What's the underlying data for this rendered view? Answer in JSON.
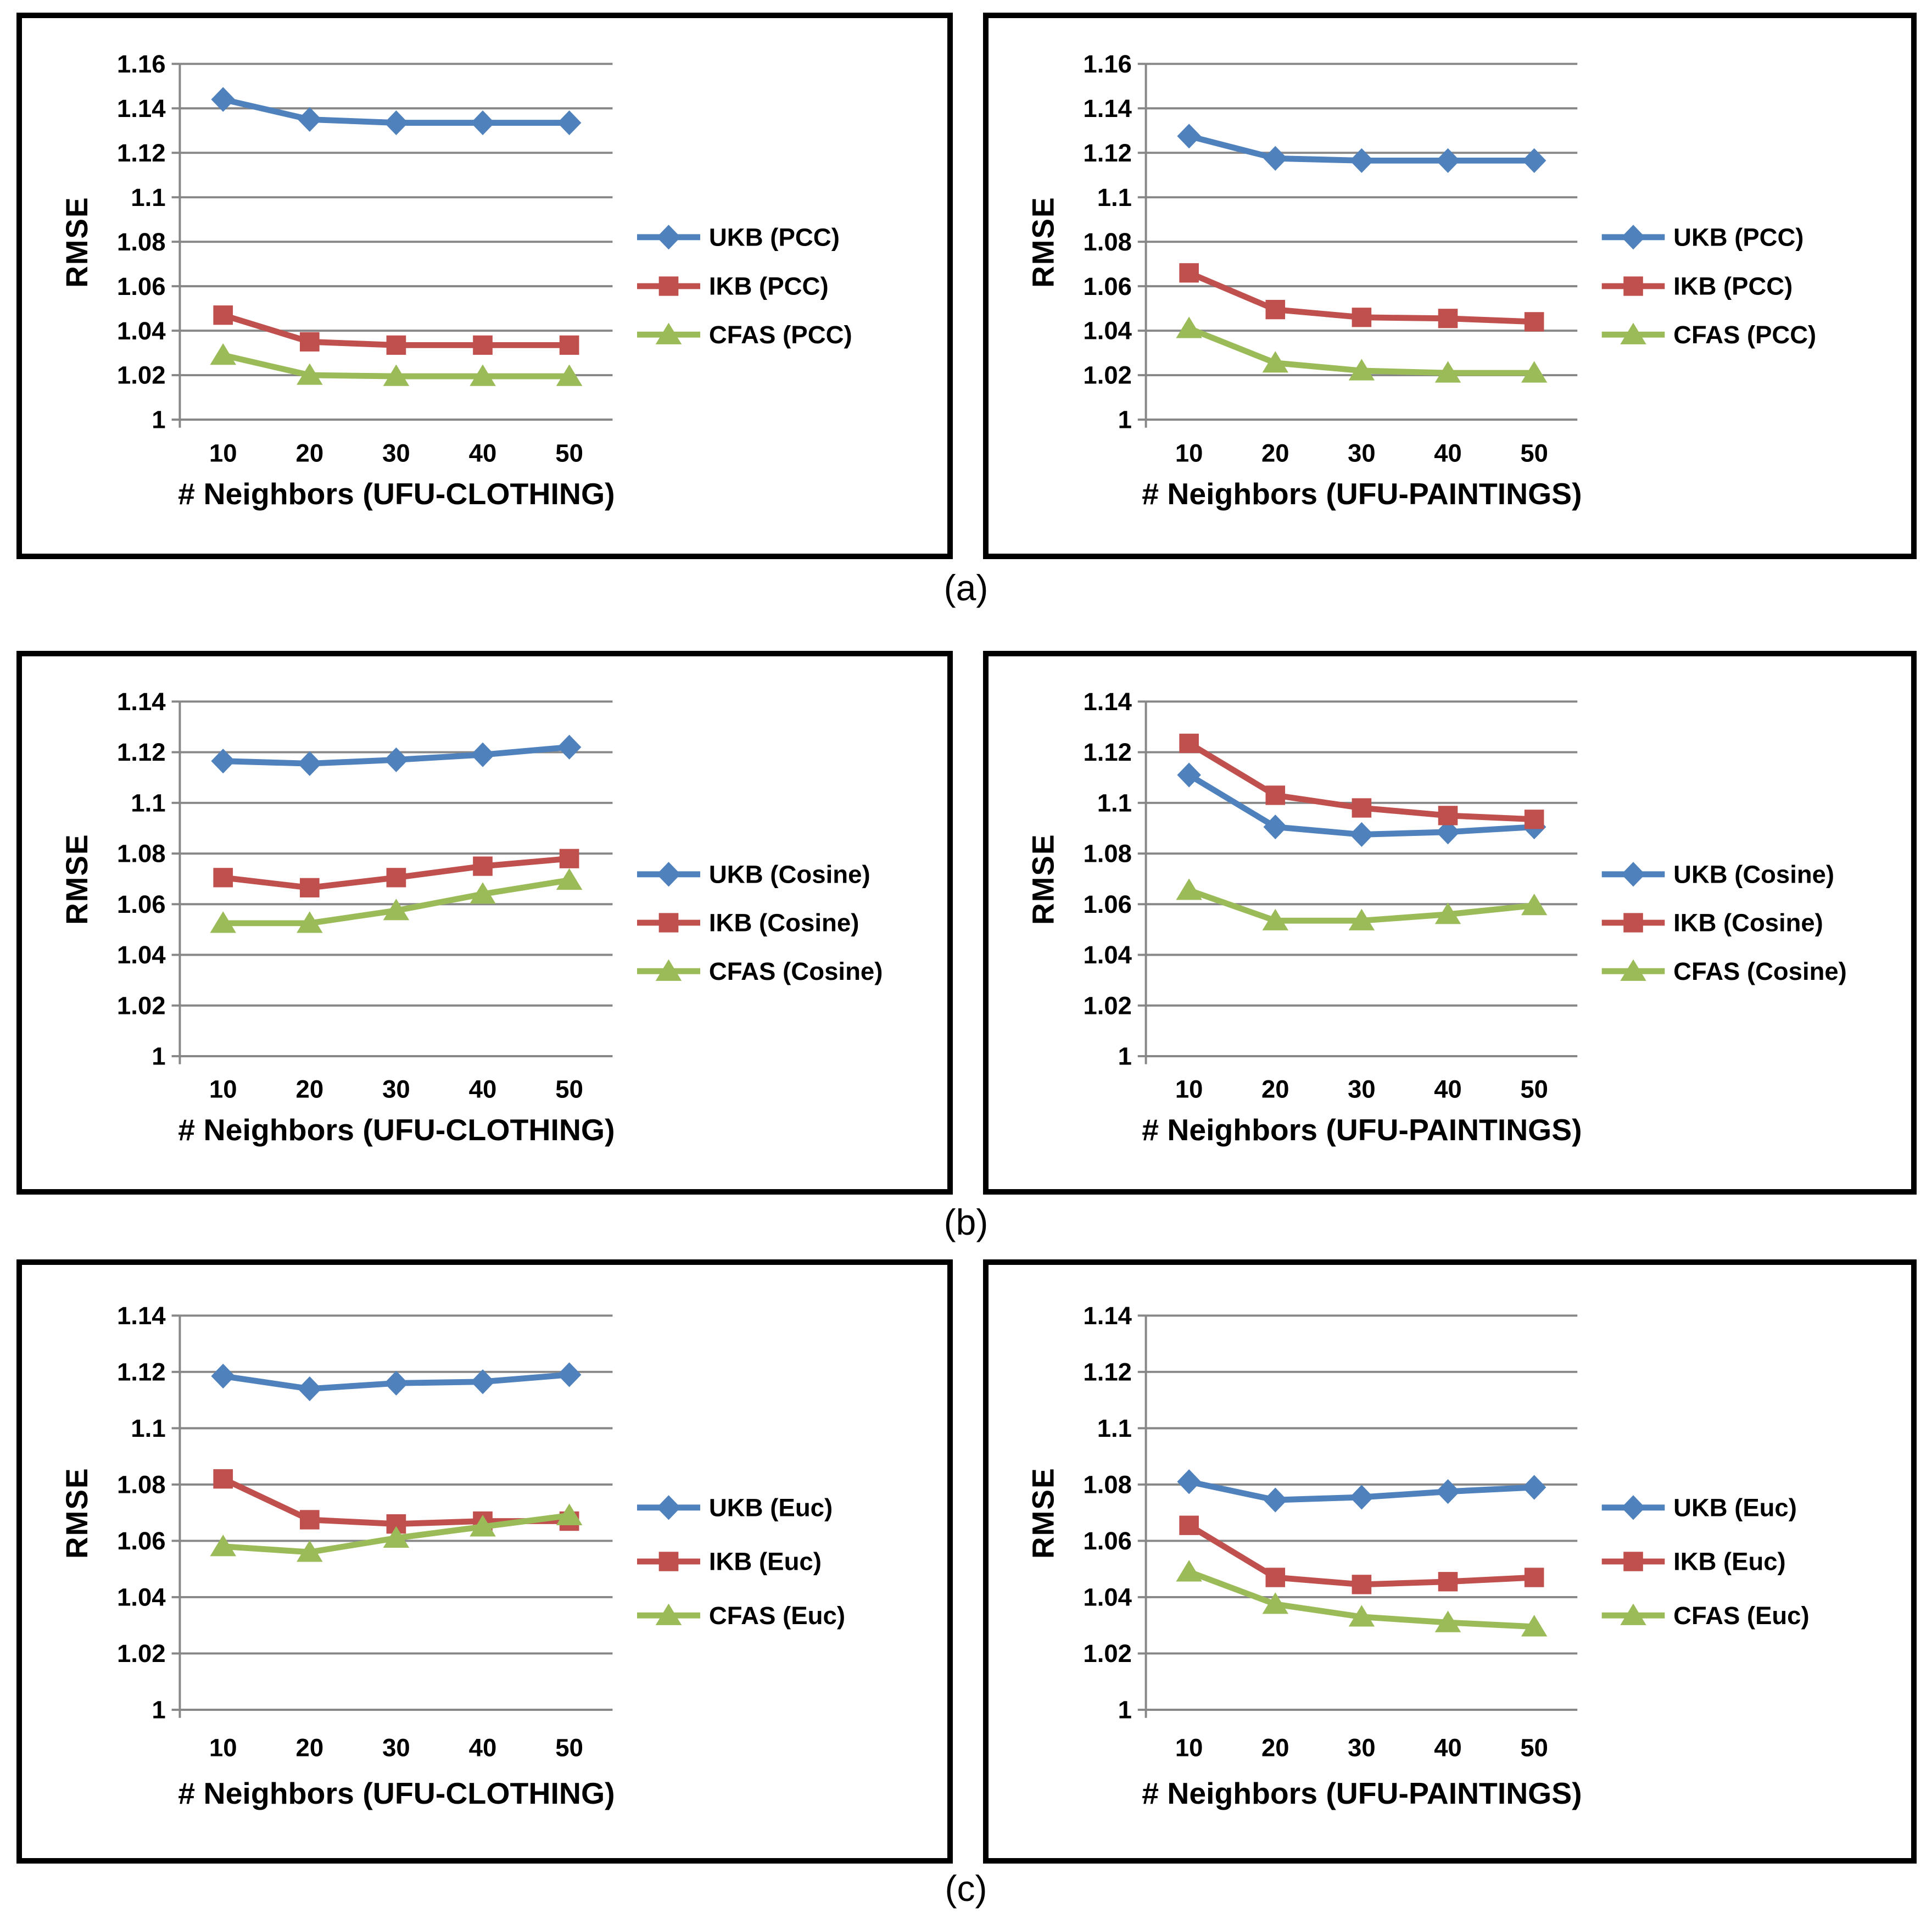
{
  "figure": {
    "panel_labels": [
      "(a)",
      "(b)",
      "(c)"
    ]
  },
  "colors": {
    "series_blue": "#4F81BD",
    "series_red": "#C0504D",
    "series_green": "#9BBB59",
    "grid": "#878787",
    "axis": "#878787",
    "text": "#000000",
    "box_border": "#000000",
    "background": "#FFFFFF"
  },
  "chart_data": [
    {
      "panel": "(a)",
      "position": "left",
      "type": "line",
      "xlabel": "# Neighbors (UFU-CLOTHING)",
      "ylabel": "RMSE",
      "x": [
        10,
        20,
        30,
        40,
        50
      ],
      "x_tick_labels": [
        "10",
        "20",
        "30",
        "40",
        "50"
      ],
      "ylim": [
        1,
        1.16
      ],
      "ytick_step": 0.02,
      "yticks": [
        "1",
        "1.02",
        "1.04",
        "1.06",
        "1.08",
        "1.1",
        "1.12",
        "1.14",
        "1.16"
      ],
      "grid": true,
      "legend_position": "right",
      "series": [
        {
          "name": "UKB (PCC)",
          "color": "#4F81BD",
          "marker": "diamond",
          "values": [
            1.144,
            1.135,
            1.1335,
            1.1335,
            1.1335
          ]
        },
        {
          "name": "IKB (PCC)",
          "color": "#C0504D",
          "marker": "square",
          "values": [
            1.047,
            1.035,
            1.0335,
            1.0335,
            1.0335
          ]
        },
        {
          "name": "CFAS (PCC)",
          "color": "#9BBB59",
          "marker": "triangle",
          "values": [
            1.029,
            1.02,
            1.0195,
            1.0195,
            1.0195
          ]
        }
      ]
    },
    {
      "panel": "(a)",
      "position": "right",
      "type": "line",
      "xlabel": "# Neighbors (UFU-PAINTINGS)",
      "ylabel": "RMSE",
      "x": [
        10,
        20,
        30,
        40,
        50
      ],
      "x_tick_labels": [
        "10",
        "20",
        "30",
        "40",
        "50"
      ],
      "ylim": [
        1,
        1.16
      ],
      "ytick_step": 0.02,
      "yticks": [
        "1",
        "1.02",
        "1.04",
        "1.06",
        "1.08",
        "1.1",
        "1.12",
        "1.14",
        "1.16"
      ],
      "grid": true,
      "legend_position": "right",
      "series": [
        {
          "name": "UKB (PCC)",
          "color": "#4F81BD",
          "marker": "diamond",
          "values": [
            1.1275,
            1.1175,
            1.1165,
            1.1165,
            1.1165
          ]
        },
        {
          "name": "IKB (PCC)",
          "color": "#C0504D",
          "marker": "square",
          "values": [
            1.066,
            1.0495,
            1.046,
            1.0455,
            1.044
          ]
        },
        {
          "name": "CFAS (PCC)",
          "color": "#9BBB59",
          "marker": "triangle",
          "values": [
            1.041,
            1.0255,
            1.022,
            1.021,
            1.021
          ]
        }
      ]
    },
    {
      "panel": "(b)",
      "position": "left",
      "type": "line",
      "xlabel": "# Neighbors (UFU-CLOTHING)",
      "ylabel": "RMSE",
      "x": [
        10,
        20,
        30,
        40,
        50
      ],
      "x_tick_labels": [
        "10",
        "20",
        "30",
        "40",
        "50"
      ],
      "ylim": [
        1,
        1.14
      ],
      "ytick_step": 0.02,
      "yticks": [
        "1",
        "1.02",
        "1.04",
        "1.06",
        "1.08",
        "1.1",
        "1.12",
        "1.14"
      ],
      "grid": true,
      "legend_position": "right",
      "series": [
        {
          "name": "UKB (Cosine)",
          "color": "#4F81BD",
          "marker": "diamond",
          "values": [
            1.1165,
            1.1155,
            1.117,
            1.119,
            1.122
          ]
        },
        {
          "name": "IKB (Cosine)",
          "color": "#C0504D",
          "marker": "square",
          "values": [
            1.0705,
            1.0665,
            1.0705,
            1.075,
            1.078
          ]
        },
        {
          "name": "CFAS (Cosine)",
          "color": "#9BBB59",
          "marker": "triangle",
          "values": [
            1.0525,
            1.0525,
            1.0575,
            1.064,
            1.0695
          ]
        }
      ]
    },
    {
      "panel": "(b)",
      "position": "right",
      "type": "line",
      "xlabel": "# Neighbors (UFU-PAINTINGS)",
      "ylabel": "RMSE",
      "x": [
        10,
        20,
        30,
        40,
        50
      ],
      "x_tick_labels": [
        "10",
        "20",
        "30",
        "40",
        "50"
      ],
      "ylim": [
        1,
        1.14
      ],
      "ytick_step": 0.02,
      "yticks": [
        "1",
        "1.02",
        "1.04",
        "1.06",
        "1.08",
        "1.1",
        "1.12",
        "1.14"
      ],
      "grid": true,
      "legend_position": "right",
      "series": [
        {
          "name": "UKB (Cosine)",
          "color": "#4F81BD",
          "marker": "diamond",
          "values": [
            1.111,
            1.0905,
            1.0875,
            1.0885,
            1.0905
          ]
        },
        {
          "name": "IKB (Cosine)",
          "color": "#C0504D",
          "marker": "square",
          "values": [
            1.1235,
            1.103,
            1.098,
            1.095,
            1.0935
          ]
        },
        {
          "name": "CFAS (Cosine)",
          "color": "#9BBB59",
          "marker": "triangle",
          "values": [
            1.0655,
            1.0535,
            1.0535,
            1.056,
            1.0595
          ]
        }
      ]
    },
    {
      "panel": "(c)",
      "position": "left",
      "type": "line",
      "xlabel": "# Neighbors (UFU-CLOTHING)",
      "ylabel": "RMSE",
      "x": [
        10,
        20,
        30,
        40,
        50
      ],
      "x_tick_labels": [
        "10",
        "20",
        "30",
        "40",
        "50"
      ],
      "ylim": [
        1,
        1.14
      ],
      "ytick_step": 0.02,
      "yticks": [
        "1",
        "1.02",
        "1.04",
        "1.06",
        "1.08",
        "1.1",
        "1.12",
        "1.14"
      ],
      "grid": true,
      "legend_position": "right",
      "series": [
        {
          "name": "UKB (Euc)",
          "color": "#4F81BD",
          "marker": "diamond",
          "values": [
            1.1185,
            1.114,
            1.116,
            1.1165,
            1.119
          ]
        },
        {
          "name": "IKB (Euc)",
          "color": "#C0504D",
          "marker": "square",
          "values": [
            1.082,
            1.0675,
            1.066,
            1.067,
            1.067
          ]
        },
        {
          "name": "CFAS (Euc)",
          "color": "#9BBB59",
          "marker": "triangle",
          "values": [
            1.058,
            1.056,
            1.061,
            1.065,
            1.069
          ]
        }
      ]
    },
    {
      "panel": "(c)",
      "position": "right",
      "type": "line",
      "xlabel": "# Neighbors (UFU-PAINTINGS)",
      "ylabel": "RMSE",
      "x": [
        10,
        20,
        30,
        40,
        50
      ],
      "x_tick_labels": [
        "10",
        "20",
        "30",
        "40",
        "50"
      ],
      "ylim": [
        1,
        1.14
      ],
      "ytick_step": 0.02,
      "yticks": [
        "1",
        "1.02",
        "1.04",
        "1.06",
        "1.08",
        "1.1",
        "1.12",
        "1.14"
      ],
      "grid": true,
      "legend_position": "right",
      "series": [
        {
          "name": "UKB (Euc)",
          "color": "#4F81BD",
          "marker": "diamond",
          "values": [
            1.081,
            1.0745,
            1.0755,
            1.0775,
            1.079
          ]
        },
        {
          "name": "IKB (Euc)",
          "color": "#C0504D",
          "marker": "square",
          "values": [
            1.0655,
            1.047,
            1.0445,
            1.0455,
            1.047
          ]
        },
        {
          "name": "CFAS (Euc)",
          "color": "#9BBB59",
          "marker": "triangle",
          "values": [
            1.049,
            1.0375,
            1.033,
            1.031,
            1.0295
          ]
        }
      ]
    }
  ]
}
